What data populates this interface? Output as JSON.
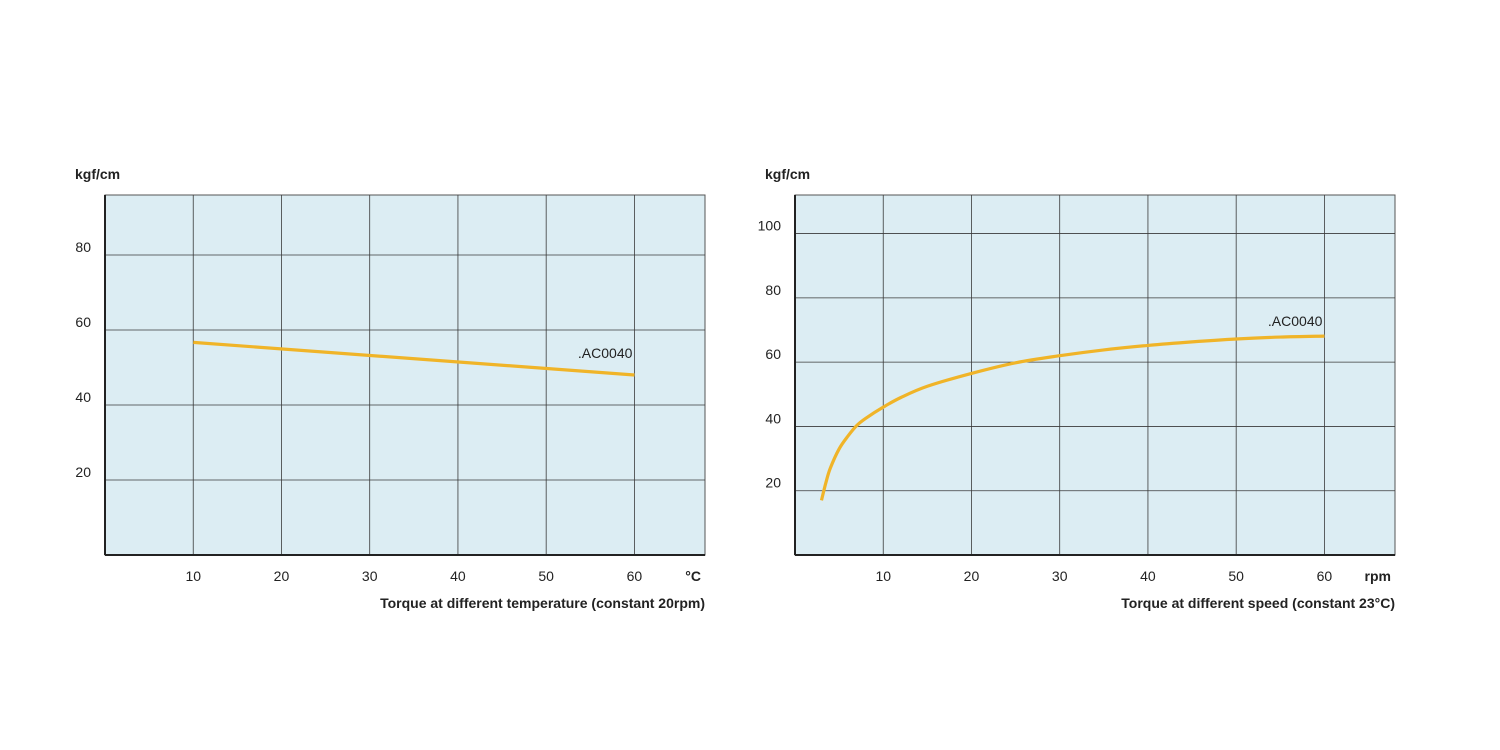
{
  "chart_data": [
    {
      "type": "line",
      "title": "Torque at different temperature (constant 20rpm)",
      "ylabel": "kgf/cm",
      "xlabel": "°C",
      "xlim": [
        0,
        68
      ],
      "ylim": [
        0,
        96
      ],
      "x_ticks": [
        10,
        20,
        30,
        40,
        50,
        60
      ],
      "y_ticks": [
        20,
        40,
        60,
        80
      ],
      "grid": true,
      "plot_background": "#dcedf3",
      "series": [
        {
          "name": ".AC0040",
          "color": "#f0b428",
          "x": [
            10,
            60
          ],
          "y": [
            56.7,
            48
          ]
        }
      ]
    },
    {
      "type": "line",
      "title": "Torque at different speed (constant 23°C)",
      "ylabel": "kgf/cm",
      "xlabel": "rpm",
      "xlim": [
        0,
        68
      ],
      "ylim": [
        0,
        112
      ],
      "x_ticks": [
        10,
        20,
        30,
        40,
        50,
        60
      ],
      "y_ticks": [
        20,
        40,
        60,
        80,
        100
      ],
      "grid": true,
      "plot_background": "#dcedf3",
      "series": [
        {
          "name": ".AC0040",
          "color": "#f0b428",
          "x": [
            3,
            3.5,
            4,
            5,
            6,
            7,
            8,
            10,
            12,
            15,
            20,
            25,
            30,
            35,
            40,
            45,
            50,
            55,
            60
          ],
          "y": [
            17,
            22.5,
            27,
            33,
            37,
            40.3,
            42.5,
            46,
            49,
            52.5,
            56.5,
            59.8,
            62,
            63.8,
            65.2,
            66.3,
            67.2,
            67.8,
            68.1
          ]
        }
      ]
    }
  ]
}
